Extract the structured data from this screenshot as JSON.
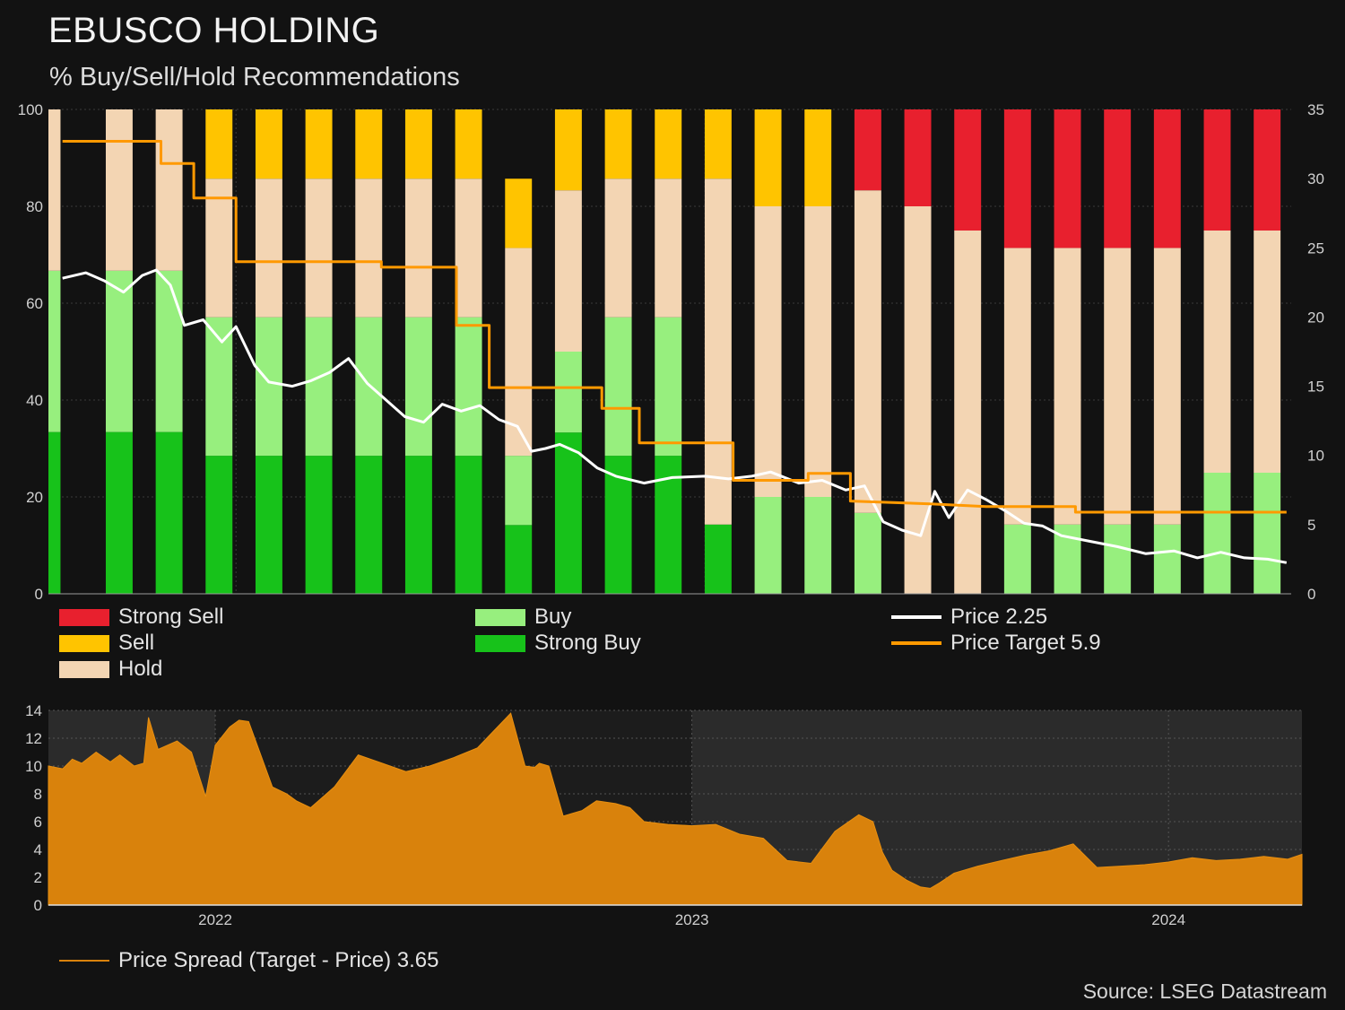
{
  "title": "EBUSCO HOLDING",
  "subtitle": "% Buy/Sell/Hold Recommendations",
  "source": "Source: LSEG Datastream",
  "colors": {
    "strong_sell": "#e8202e",
    "sell": "#ffc400",
    "hold": "#f3d5b3",
    "buy": "#97ef7e",
    "strong_buy": "#17c21a",
    "price": "#ffffff",
    "price_target": "#ff9900",
    "spread_fill": "#d9820c",
    "background": "#121212"
  },
  "legend": {
    "strong_sell": "Strong Sell",
    "sell": "Sell",
    "hold": "Hold",
    "buy": "Buy",
    "strong_buy": "Strong Buy",
    "price": "Price 2.25",
    "price_target": "Price Target 5.9",
    "spread": "Price Spread (Target - Price) 3.65"
  },
  "chart_data": [
    {
      "type": "bar",
      "stacked": true,
      "y_left_ticks": [
        "0",
        "20",
        "40",
        "60",
        "80",
        "100"
      ],
      "y_right_ticks": [
        "0",
        "5",
        "10",
        "15",
        "20",
        "25",
        "30",
        "35"
      ],
      "ylim_left": [
        0,
        100
      ],
      "ylim_right": [
        0,
        35
      ],
      "x_range": [
        2021.6,
        2024.25
      ],
      "x_ticks": [],
      "series": [
        {
          "name": "Strong Sell",
          "values": [
            0,
            0,
            0,
            0,
            0,
            0,
            0,
            0,
            0,
            0,
            0,
            0,
            0,
            0,
            0,
            0,
            16.7,
            20,
            25,
            28.6,
            28.6,
            28.6,
            28.6,
            25,
            25
          ]
        },
        {
          "name": "Sell",
          "values": [
            0,
            0,
            0,
            14.3,
            14.3,
            14.3,
            14.3,
            14.3,
            14.3,
            14.3,
            16.7,
            14.3,
            14.3,
            14.3,
            20,
            20,
            0,
            0,
            0,
            0,
            0,
            0,
            0,
            0,
            0
          ]
        },
        {
          "name": "Hold",
          "values": [
            33.3,
            33.3,
            33.3,
            28.6,
            28.6,
            28.6,
            28.6,
            28.6,
            28.6,
            42.9,
            33.3,
            28.6,
            28.6,
            71.4,
            60,
            60,
            66.6,
            80,
            75,
            57.1,
            57.1,
            57.1,
            57.1,
            50,
            50
          ]
        },
        {
          "name": "Buy",
          "values": [
            33.3,
            33.3,
            33.3,
            28.6,
            28.6,
            28.6,
            28.6,
            28.6,
            28.6,
            14.3,
            16.7,
            28.6,
            28.6,
            0,
            20,
            20,
            16.7,
            0,
            0,
            14.3,
            14.3,
            14.3,
            14.3,
            25,
            25
          ]
        },
        {
          "name": "Strong Buy",
          "values": [
            33.4,
            33.4,
            33.4,
            28.5,
            28.5,
            28.5,
            28.5,
            28.5,
            28.5,
            14.2,
            33.3,
            28.5,
            28.5,
            14.3,
            0,
            0,
            0,
            0,
            0,
            0,
            0,
            0,
            0,
            0,
            0
          ]
        }
      ],
      "lines": [
        {
          "name": "Price 2.25",
          "axis": "right",
          "points": [
            [
              2021.63,
              22.8
            ],
            [
              2021.68,
              23.2
            ],
            [
              2021.72,
              22.6
            ],
            [
              2021.76,
              21.8
            ],
            [
              2021.8,
              23
            ],
            [
              2021.83,
              23.4
            ],
            [
              2021.86,
              22.3
            ],
            [
              2021.89,
              19.4
            ],
            [
              2021.93,
              19.8
            ],
            [
              2021.97,
              18.2
            ],
            [
              2022.0,
              19.3
            ],
            [
              2022.04,
              16.5
            ],
            [
              2022.07,
              15.3
            ],
            [
              2022.12,
              15.0
            ],
            [
              2022.16,
              15.4
            ],
            [
              2022.2,
              16.0
            ],
            [
              2022.24,
              17.0
            ],
            [
              2022.28,
              15.2
            ],
            [
              2022.32,
              14.0
            ],
            [
              2022.36,
              12.8
            ],
            [
              2022.4,
              12.4
            ],
            [
              2022.44,
              13.7
            ],
            [
              2022.48,
              13.2
            ],
            [
              2022.52,
              13.6
            ],
            [
              2022.56,
              12.6
            ],
            [
              2022.6,
              12.1
            ],
            [
              2022.63,
              10.3
            ],
            [
              2022.66,
              10.5
            ],
            [
              2022.69,
              10.8
            ],
            [
              2022.73,
              10.2
            ],
            [
              2022.77,
              9.1
            ],
            [
              2022.81,
              8.5
            ],
            [
              2022.87,
              8.0
            ],
            [
              2022.93,
              8.4
            ],
            [
              2023.0,
              8.5
            ],
            [
              2023.05,
              8.3
            ],
            [
              2023.1,
              8.5
            ],
            [
              2023.14,
              8.8
            ],
            [
              2023.2,
              8.0
            ],
            [
              2023.25,
              8.2
            ],
            [
              2023.3,
              7.5
            ],
            [
              2023.34,
              7.8
            ],
            [
              2023.38,
              5.2
            ],
            [
              2023.42,
              4.6
            ],
            [
              2023.46,
              4.2
            ],
            [
              2023.49,
              7.4
            ],
            [
              2023.52,
              5.5
            ],
            [
              2023.56,
              7.5
            ],
            [
              2023.6,
              6.8
            ],
            [
              2023.64,
              6.0
            ],
            [
              2023.68,
              5.1
            ],
            [
              2023.72,
              4.9
            ],
            [
              2023.76,
              4.2
            ],
            [
              2023.82,
              3.8
            ],
            [
              2023.88,
              3.4
            ],
            [
              2023.94,
              2.9
            ],
            [
              2024.0,
              3.1
            ],
            [
              2024.05,
              2.6
            ],
            [
              2024.1,
              3.0
            ],
            [
              2024.15,
              2.6
            ],
            [
              2024.2,
              2.5
            ],
            [
              2024.24,
              2.25
            ]
          ]
        },
        {
          "name": "Price Target 5.9",
          "axis": "right",
          "points": [
            [
              2021.63,
              32.7
            ],
            [
              2021.84,
              32.7
            ],
            [
              2021.84,
              31.1
            ],
            [
              2021.91,
              31.1
            ],
            [
              2021.91,
              28.6
            ],
            [
              2022.0,
              28.6
            ],
            [
              2022.0,
              24.0
            ],
            [
              2022.31,
              24.0
            ],
            [
              2022.31,
              23.6
            ],
            [
              2022.47,
              23.6
            ],
            [
              2022.47,
              19.4
            ],
            [
              2022.54,
              19.4
            ],
            [
              2022.54,
              14.9
            ],
            [
              2022.78,
              14.9
            ],
            [
              2022.78,
              13.4
            ],
            [
              2022.86,
              13.4
            ],
            [
              2022.86,
              10.9
            ],
            [
              2023.06,
              10.9
            ],
            [
              2023.06,
              8.2
            ],
            [
              2023.22,
              8.2
            ],
            [
              2023.22,
              8.7
            ],
            [
              2023.31,
              8.7
            ],
            [
              2023.31,
              6.7
            ],
            [
              2023.48,
              6.5
            ],
            [
              2023.6,
              6.3
            ],
            [
              2023.79,
              6.3
            ],
            [
              2023.79,
              5.9
            ],
            [
              2024.24,
              5.9
            ]
          ]
        }
      ]
    },
    {
      "type": "area",
      "y_ticks": [
        "0",
        "2",
        "4",
        "6",
        "8",
        "10",
        "12",
        "14"
      ],
      "ylim": [
        0,
        14
      ],
      "x_tick_labels": [
        "2022",
        "2023",
        "2024"
      ],
      "x_tick_values": [
        2022.0,
        2023.0,
        2024.0
      ],
      "x_range": [
        2021.65,
        2024.28
      ],
      "shaded_regions": [
        [
          2021.65,
          2022.0
        ],
        [
          2023.0,
          2024.28
        ]
      ],
      "series": [
        {
          "name": "Price Spread (Target - Price) 3.65",
          "x": [
            2021.65,
            2021.68,
            2021.7,
            2021.72,
            2021.75,
            2021.78,
            2021.8,
            2021.83,
            2021.85,
            2021.86,
            2021.88,
            2021.92,
            2021.95,
            2021.98,
            2022.0,
            2022.03,
            2022.05,
            2022.07,
            2022.12,
            2022.15,
            2022.17,
            2022.2,
            2022.25,
            2022.3,
            2022.35,
            2022.4,
            2022.45,
            2022.5,
            2022.55,
            2022.62,
            2022.65,
            2022.67,
            2022.68,
            2022.7,
            2022.73,
            2022.77,
            2022.8,
            2022.84,
            2022.87,
            2022.9,
            2022.95,
            2023.0,
            2023.05,
            2023.1,
            2023.15,
            2023.2,
            2023.25,
            2023.3,
            2023.35,
            2023.38,
            2023.4,
            2023.42,
            2023.45,
            2023.48,
            2023.5,
            2023.52,
            2023.55,
            2023.6,
            2023.65,
            2023.7,
            2023.75,
            2023.8,
            2023.85,
            2023.9,
            2023.95,
            2024.0,
            2024.05,
            2024.1,
            2024.15,
            2024.2,
            2024.25,
            2024.28
          ],
          "y": [
            10.0,
            9.8,
            10.5,
            10.2,
            11.0,
            10.3,
            10.8,
            10.0,
            10.2,
            13.5,
            11.2,
            11.8,
            11.0,
            7.8,
            11.5,
            12.8,
            13.3,
            13.2,
            8.5,
            8.0,
            7.5,
            7.0,
            8.5,
            10.8,
            10.2,
            9.6,
            10.0,
            10.6,
            11.3,
            13.8,
            10.0,
            9.9,
            10.2,
            10.0,
            6.4,
            6.8,
            7.5,
            7.3,
            7.0,
            6.0,
            5.8,
            5.7,
            5.8,
            5.1,
            4.8,
            3.2,
            3.0,
            5.3,
            6.5,
            6.0,
            3.8,
            2.5,
            1.8,
            1.3,
            1.2,
            1.6,
            2.3,
            2.8,
            3.2,
            3.6,
            3.9,
            4.4,
            2.7,
            2.8,
            2.9,
            3.1,
            3.4,
            3.2,
            3.3,
            3.5,
            3.3,
            3.65
          ]
        }
      ]
    }
  ]
}
